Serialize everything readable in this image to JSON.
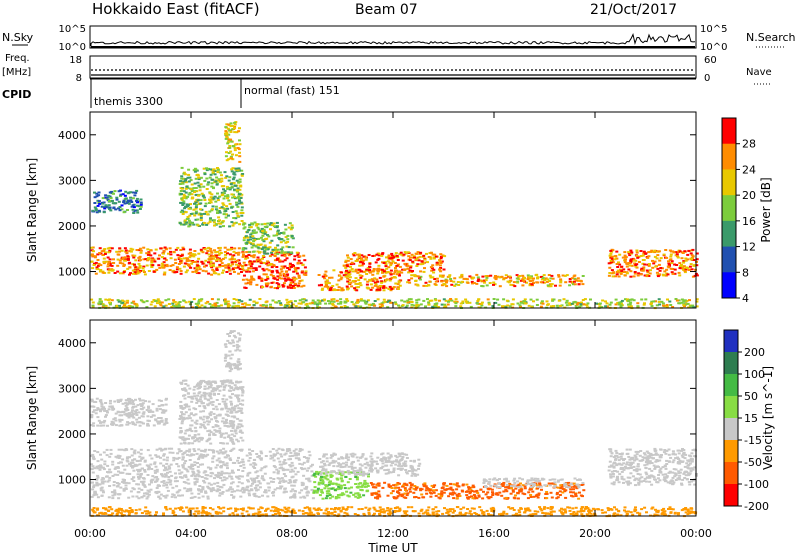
{
  "header": {
    "station": "Hokkaido East (fitACF)",
    "beam": "Beam 07",
    "date": "21/Oct/2017"
  },
  "nsky_panel": {
    "left_label": "N.Sky",
    "right_label": "N.Search",
    "left_ticks": [
      "10^5",
      "10^0"
    ],
    "right_ticks": [
      "10^5",
      "10^0"
    ]
  },
  "freq_panel": {
    "left_label_1": "Freq.",
    "left_label_2": "[MHz]",
    "right_label": "Nave",
    "left_ticks": [
      "18",
      "8"
    ],
    "right_ticks": [
      "60",
      "0"
    ]
  },
  "cpid_panel": {
    "label": "CPID",
    "segments": [
      {
        "name": "themis 3300",
        "start_h": 0.0
      },
      {
        "name": "normal (fast) 151",
        "start_h": 6.0
      }
    ]
  },
  "chart_data": [
    {
      "type": "heatmap",
      "parameter": "Power",
      "ylabel": "Slant Range [km]",
      "colorbar_label": "Power [dB]",
      "colorbar_ticks": [
        "28",
        "24",
        "20",
        "16",
        "12",
        "8",
        "4"
      ],
      "colors": [
        "#ff0000",
        "#ff8c00",
        "#e8c800",
        "#7ccc3c",
        "#3a9a6a",
        "#2050b0",
        "#0000ff"
      ],
      "yticks": [
        "4000",
        "3000",
        "2000",
        "1000"
      ],
      "yrange": [
        200,
        4500
      ],
      "xrange_hours": [
        0,
        24
      ],
      "regions": [
        {
          "t": [
            0.0,
            6.0
          ],
          "r": [
            950,
            1550
          ],
          "value": 26
        },
        {
          "t": [
            6.0,
            8.5
          ],
          "r": [
            650,
            1450
          ],
          "value": 28
        },
        {
          "t": [
            9.0,
            12.3
          ],
          "r": [
            600,
            1050
          ],
          "value": 25
        },
        {
          "t": [
            10.0,
            14.0
          ],
          "r": [
            1000,
            1450
          ],
          "value": 26
        },
        {
          "t": [
            12.5,
            19.5
          ],
          "r": [
            700,
            950
          ],
          "value": 24
        },
        {
          "t": [
            20.5,
            24.0
          ],
          "r": [
            900,
            1500
          ],
          "value": 26
        },
        {
          "t": [
            3.5,
            6.0
          ],
          "r": [
            2000,
            3300
          ],
          "value": 18
        },
        {
          "t": [
            0.0,
            2.0
          ],
          "r": [
            2300,
            2800
          ],
          "value": 12
        },
        {
          "t": [
            5.3,
            5.9
          ],
          "r": [
            3400,
            4300
          ],
          "value": 22
        },
        {
          "t": [
            6.0,
            8.0
          ],
          "r": [
            1400,
            2100
          ],
          "value": 18
        },
        {
          "t": [
            0.0,
            24.0
          ],
          "r": [
            220,
            420
          ],
          "value": 20
        }
      ]
    },
    {
      "type": "heatmap",
      "parameter": "Velocity",
      "ylabel": "Slant Range [km]",
      "colorbar_label": "Velocity [m s^-1]",
      "colorbar_ticks": [
        "200",
        "100",
        "50",
        "15",
        "-15",
        "-50",
        "-100",
        "-200"
      ],
      "colors": [
        "#2030c0",
        "#2e7d50",
        "#44bb44",
        "#88dd44",
        "#c8c8c8",
        "#ff9a00",
        "#ff5a00",
        "#ff0000"
      ],
      "yticks": [
        "4000",
        "3000",
        "2000",
        "1000"
      ],
      "yrange": [
        200,
        4500
      ],
      "xrange_hours": [
        0,
        24
      ],
      "xticks": [
        "00:00",
        "04:00",
        "08:00",
        "12:00",
        "16:00",
        "20:00",
        "00:00"
      ],
      "xlabel": "Time UT",
      "regions": [
        {
          "t": [
            0.0,
            8.8
          ],
          "r": [
            600,
            1700
          ],
          "value": 0
        },
        {
          "t": [
            0.0,
            3.0
          ],
          "r": [
            2200,
            2800
          ],
          "value": 0
        },
        {
          "t": [
            3.5,
            6.0
          ],
          "r": [
            1800,
            3200
          ],
          "value": 0
        },
        {
          "t": [
            5.3,
            5.9
          ],
          "r": [
            3400,
            4300
          ],
          "value": 0
        },
        {
          "t": [
            8.8,
            11.0
          ],
          "r": [
            600,
            1200
          ],
          "value": 40
        },
        {
          "t": [
            9.0,
            13.0
          ],
          "r": [
            1100,
            1600
          ],
          "value": 0
        },
        {
          "t": [
            11.0,
            19.5
          ],
          "r": [
            600,
            950
          ],
          "value": -60
        },
        {
          "t": [
            15.5,
            19.5
          ],
          "r": [
            850,
            1050
          ],
          "value": 0
        },
        {
          "t": [
            20.5,
            24.0
          ],
          "r": [
            900,
            1700
          ],
          "value": 0
        },
        {
          "t": [
            0.0,
            24.0
          ],
          "r": [
            220,
            420
          ],
          "value": -30
        }
      ]
    }
  ]
}
